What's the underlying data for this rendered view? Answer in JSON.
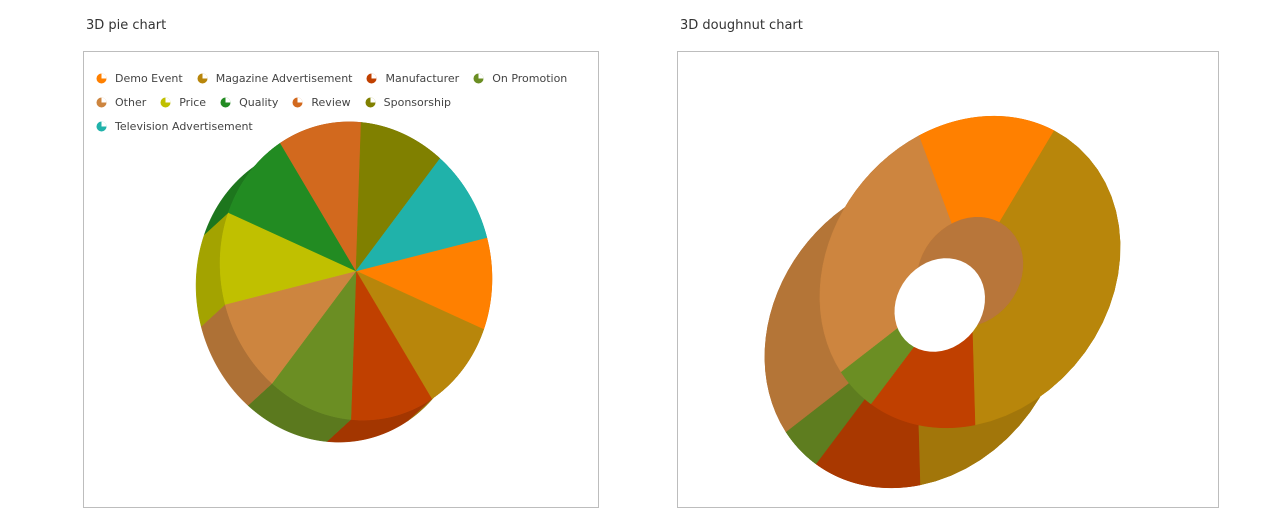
{
  "pie_panel": {
    "title": "3D pie chart"
  },
  "doughnut_panel": {
    "title": "3D doughnut chart"
  },
  "legend": [
    {
      "label": "Demo Event",
      "color": "#FF8000",
      "icon": "pie-slice-icon"
    },
    {
      "label": "Magazine Advertisement",
      "color": "#B8860B",
      "icon": "pie-slice-icon"
    },
    {
      "label": "Manufacturer",
      "color": "#C04000",
      "icon": "pie-slice-icon"
    },
    {
      "label": "On Promotion",
      "color": "#6B8E23",
      "icon": "pie-slice-icon"
    },
    {
      "label": "Other",
      "color": "#CD853F",
      "icon": "pie-slice-icon"
    },
    {
      "label": "Price",
      "color": "#C0C000",
      "icon": "pie-slice-icon"
    },
    {
      "label": "Quality",
      "color": "#228B22",
      "icon": "pie-slice-icon"
    },
    {
      "label": "Review",
      "color": "#D2691E",
      "icon": "pie-slice-icon"
    },
    {
      "label": "Sponsorship",
      "color": "#808000",
      "icon": "pie-slice-icon"
    },
    {
      "label": "Television Advertisement",
      "color": "#20B2AA",
      "icon": "pie-slice-icon"
    }
  ],
  "chart_data": [
    {
      "type": "pie",
      "title": "3D pie chart",
      "legend_position": "top",
      "categories": [
        "Demo Event",
        "Magazine Advertisement",
        "Manufacturer",
        "On Promotion",
        "Other",
        "Price",
        "Quality",
        "Review",
        "Sponsorship",
        "Television Advertisement"
      ],
      "values": [
        10,
        10,
        10,
        10,
        10,
        10,
        10,
        10,
        10,
        10
      ],
      "colors": [
        "#FF8000",
        "#B8860B",
        "#C04000",
        "#6B8E23",
        "#CD853F",
        "#C0C000",
        "#228B22",
        "#D2691E",
        "#808000",
        "#20B2AA"
      ]
    },
    {
      "type": "pie",
      "subtype": "doughnut",
      "title": "3D doughnut chart",
      "categories": [
        "Demo Event",
        "Magazine Advertisement",
        "Manufacturer",
        "On Promotion",
        "Other"
      ],
      "values": [
        15,
        40,
        12,
        5,
        28
      ],
      "colors": [
        "#FF8000",
        "#B8860B",
        "#C04000",
        "#6B8E23",
        "#CD853F"
      ]
    }
  ]
}
